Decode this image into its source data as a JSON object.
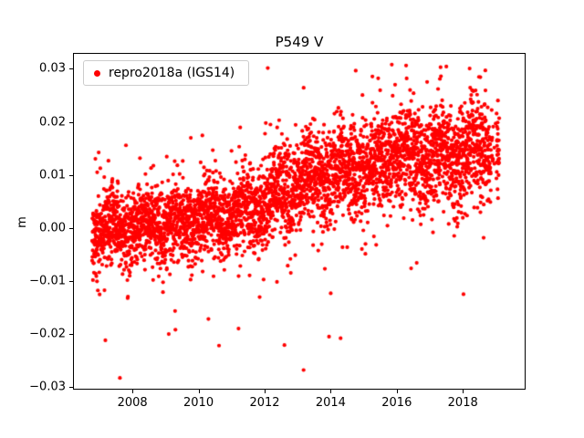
{
  "chart_data": {
    "type": "scatter",
    "title": "P549 V",
    "xlabel": "",
    "ylabel": "m",
    "xlim": [
      2006.2,
      2019.9
    ],
    "ylim": [
      -0.0305,
      0.033
    ],
    "grid": false,
    "legend_position": "upper left",
    "xticks": {
      "values": [
        2008,
        2010,
        2012,
        2014,
        2016,
        2018
      ],
      "labels": [
        "2008",
        "2010",
        "2012",
        "2014",
        "2016",
        "2018"
      ]
    },
    "yticks": {
      "values": [
        -0.03,
        -0.02,
        -0.01,
        0,
        0.01,
        0.02,
        0.03
      ],
      "labels": [
        "−0.03",
        "−0.02",
        "−0.01",
        "0.00",
        "0.01",
        "0.02",
        "0.03"
      ]
    },
    "series": [
      {
        "name": "repro2018a (IGS14)",
        "color": "#ff0000",
        "marker": "point",
        "marker_radius_px": 2.1,
        "seed": 20180549,
        "x_start": 2006.78,
        "x_end": 2019.1,
        "n_points": 4300,
        "trend_knots": {
          "x": [
            2006.78,
            2007.5,
            2008.5,
            2009.5,
            2010.5,
            2011.5,
            2012.3,
            2013.0,
            2013.8,
            2014.5,
            2015.3,
            2016.0,
            2016.8,
            2017.5,
            2018.3,
            2019.1
          ],
          "y": [
            -0.001,
            0.0,
            0.0,
            0.001,
            0.002,
            0.003,
            0.006,
            0.008,
            0.01,
            0.011,
            0.012,
            0.014,
            0.013,
            0.013,
            0.014,
            0.015
          ]
        },
        "seasonal_amplitude": 0.0015,
        "seasonal_phase": 0.1,
        "noise_sd_start": 0.0033,
        "noise_sd_end": 0.0048,
        "outlier_fraction": 0.05,
        "outlier_scale": 2.4,
        "y_max_clip": 0.031,
        "y_min_clip": -0.0285,
        "sparse_regions": [
          {
            "from": 2018.85,
            "to": 2019.02,
            "drop": 0.8
          }
        ],
        "outlier_points": {
          "x": [
            2007.18,
            2007.62,
            2009.3,
            2010.62,
            2012.6,
            2013.18,
            2013.95,
            2014.3,
            2015.85,
            2015.95,
            2016.3,
            2017.25,
            2018.02
          ],
          "y": [
            -0.0212,
            -0.0283,
            -0.0192,
            -0.0222,
            -0.0221,
            -0.0268,
            -0.0205,
            -0.0208,
            0.0308,
            0.027,
            0.0282,
            0.0262,
            -0.0125
          ]
        }
      }
    ]
  }
}
